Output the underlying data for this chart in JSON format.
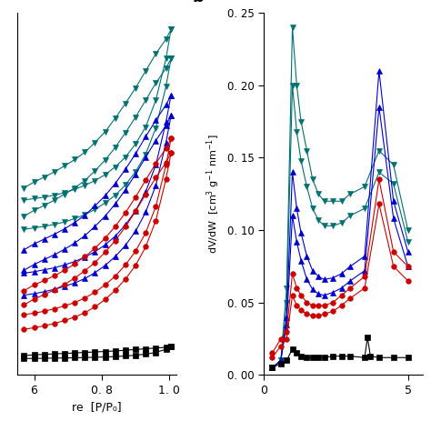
{
  "panel_a": {
    "xlim": [
      0.55,
      1.02
    ],
    "xticks": [
      0.6,
      0.8,
      1.0
    ],
    "xticklabels": [
      "6",
      "0. 8",
      "1. 0"
    ],
    "xlabel": "re  [P/P₀]",
    "series": [
      {
        "color": "#007070",
        "marker": "v",
        "x_ads": [
          0.57,
          0.6,
          0.63,
          0.66,
          0.69,
          0.72,
          0.75,
          0.78,
          0.81,
          0.84,
          0.87,
          0.9,
          0.93,
          0.96,
          0.99,
          1.005
        ],
        "y_ads": [
          330,
          333,
          336,
          340,
          345,
          352,
          360,
          370,
          382,
          398,
          418,
          445,
          480,
          535,
          620,
          680
        ],
        "x_des": [
          1.005,
          0.99,
          0.96,
          0.93,
          0.9,
          0.87,
          0.84,
          0.81,
          0.78,
          0.75,
          0.72,
          0.69,
          0.66,
          0.63,
          0.6,
          0.57
        ],
        "y_des": [
          680,
          660,
          630,
          595,
          560,
          528,
          498,
          470,
          448,
          428,
          413,
          400,
          388,
          377,
          367,
          355
        ]
      },
      {
        "color": "#007070",
        "marker": "v",
        "x_ads": [
          0.57,
          0.6,
          0.63,
          0.66,
          0.69,
          0.72,
          0.75,
          0.78,
          0.81,
          0.84,
          0.87,
          0.9,
          0.93,
          0.96,
          0.99,
          1.005
        ],
        "y_ads": [
          270,
          273,
          276,
          280,
          285,
          292,
          300,
          311,
          324,
          340,
          361,
          388,
          424,
          478,
          563,
          620
        ],
        "x_des": [
          1.005,
          0.99,
          0.96,
          0.93,
          0.9,
          0.87,
          0.84,
          0.81,
          0.78,
          0.75,
          0.72,
          0.69,
          0.66,
          0.63,
          0.6,
          0.57
        ],
        "y_des": [
          620,
          600,
          570,
          535,
          500,
          468,
          438,
          412,
          390,
          370,
          355,
          342,
          330,
          319,
          309,
          297
        ]
      },
      {
        "color": "#0000cc",
        "marker": "^",
        "x_ads": [
          0.57,
          0.6,
          0.63,
          0.66,
          0.69,
          0.72,
          0.75,
          0.78,
          0.81,
          0.84,
          0.87,
          0.9,
          0.93,
          0.96,
          0.99,
          1.005
        ],
        "y_ads": [
          180,
          183,
          187,
          191,
          197,
          204,
          213,
          224,
          238,
          256,
          279,
          308,
          347,
          402,
          490,
          545
        ],
        "x_des": [
          1.005,
          0.99,
          0.96,
          0.93,
          0.9,
          0.87,
          0.84,
          0.81,
          0.78,
          0.75,
          0.72,
          0.69,
          0.66,
          0.63,
          0.6,
          0.57
        ],
        "y_des": [
          545,
          525,
          494,
          460,
          425,
          393,
          364,
          339,
          318,
          299,
          284,
          271,
          260,
          250,
          240,
          228
        ]
      },
      {
        "color": "#0000cc",
        "marker": "^",
        "x_ads": [
          0.57,
          0.6,
          0.63,
          0.66,
          0.69,
          0.72,
          0.75,
          0.78,
          0.81,
          0.84,
          0.87,
          0.9,
          0.93,
          0.96,
          0.99,
          1.005
        ],
        "y_ads": [
          135,
          138,
          142,
          147,
          153,
          160,
          169,
          181,
          196,
          214,
          237,
          266,
          305,
          360,
          448,
          503
        ],
        "x_des": [
          1.005,
          0.99,
          0.96,
          0.93,
          0.9,
          0.87,
          0.84,
          0.81,
          0.78,
          0.75,
          0.72,
          0.69,
          0.66,
          0.63,
          0.6,
          0.57
        ],
        "y_des": [
          503,
          483,
          452,
          418,
          383,
          351,
          322,
          297,
          276,
          257,
          242,
          229,
          218,
          208,
          198,
          186
        ]
      },
      {
        "color": "#cc0000",
        "marker": "o",
        "x_ads": [
          0.57,
          0.6,
          0.63,
          0.66,
          0.69,
          0.72,
          0.75,
          0.78,
          0.81,
          0.84,
          0.87,
          0.9,
          0.93,
          0.96,
          0.99,
          1.005
        ],
        "y_ads": [
          95,
          98,
          102,
          107,
          113,
          120,
          129,
          141,
          156,
          174,
          197,
          225,
          263,
          317,
          402,
          456
        ],
        "x_des": [
          1.005,
          0.99,
          0.96,
          0.93,
          0.9,
          0.87,
          0.84,
          0.81,
          0.78,
          0.75,
          0.72,
          0.69,
          0.66,
          0.63,
          0.6,
          0.57
        ],
        "y_des": [
          456,
          436,
          405,
          371,
          336,
          304,
          276,
          252,
          231,
          214,
          199,
          186,
          175,
          165,
          156,
          144
        ]
      },
      {
        "color": "#cc0000",
        "marker": "o",
        "x_ads": [
          0.57,
          0.6,
          0.63,
          0.66,
          0.69,
          0.72,
          0.75,
          0.78,
          0.81,
          0.84,
          0.87,
          0.9,
          0.93,
          0.96,
          0.99,
          1.005
        ],
        "y_ads": [
          65,
          68,
          72,
          77,
          83,
          90,
          99,
          111,
          126,
          145,
          168,
          196,
          234,
          288,
          373,
          427
        ],
        "x_des": [
          1.005,
          0.99,
          0.96,
          0.93,
          0.9,
          0.87,
          0.84,
          0.81,
          0.78,
          0.75,
          0.72,
          0.69,
          0.66,
          0.63,
          0.6,
          0.57
        ],
        "y_des": [
          427,
          407,
          376,
          342,
          307,
          275,
          247,
          223,
          202,
          185,
          170,
          157,
          146,
          136,
          127,
          115
        ]
      },
      {
        "color": "#000000",
        "marker": "s",
        "x_ads": [
          0.57,
          0.6,
          0.63,
          0.66,
          0.69,
          0.72,
          0.75,
          0.78,
          0.81,
          0.84,
          0.87,
          0.9,
          0.93,
          0.96,
          0.99,
          1.005
        ],
        "y_ads": [
          5,
          5.2,
          5.5,
          5.8,
          6.1,
          6.5,
          7.0,
          7.5,
          8.2,
          9.0,
          10.2,
          11.8,
          14.0,
          17.5,
          24,
          29
        ],
        "x_des": [
          1.005,
          0.99,
          0.96,
          0.93,
          0.9,
          0.87,
          0.84,
          0.81,
          0.78,
          0.75,
          0.72,
          0.69,
          0.66,
          0.63,
          0.6,
          0.57
        ],
        "y_des": [
          29,
          28,
          26.5,
          25,
          23.5,
          22,
          20.5,
          19.5,
          18.5,
          17.5,
          16.5,
          15.5,
          14.5,
          13.5,
          12.5,
          11
        ]
      }
    ]
  },
  "panel_b": {
    "xlim": [
      0,
      5.5
    ],
    "ylim": [
      0,
      0.25
    ],
    "xticks": [
      0,
      5
    ],
    "xticklabels": [
      "0",
      "5"
    ],
    "yticks": [
      0.0,
      0.05,
      0.1,
      0.15,
      0.2,
      0.25
    ],
    "yticklabels": [
      "0. 00",
      "0. 05",
      "0. 10",
      "0. 15",
      "0. 20",
      "0. 25"
    ],
    "ylabel_line1": "dV/dW",
    "ylabel_line2": "[cm³ g⁻¹ nm⁻¹]",
    "panel_label": "b",
    "series": [
      {
        "color": "#007070",
        "marker": "v",
        "x": [
          0.3,
          0.6,
          0.8,
          1.0,
          1.15,
          1.3,
          1.5,
          1.7,
          1.9,
          2.1,
          2.4,
          2.7,
          3.0,
          3.5,
          4.0,
          4.5,
          5.0
        ],
        "y": [
          0.005,
          0.01,
          0.06,
          0.24,
          0.2,
          0.175,
          0.155,
          0.135,
          0.125,
          0.12,
          0.12,
          0.12,
          0.125,
          0.13,
          0.155,
          0.145,
          0.1
        ]
      },
      {
        "color": "#007070",
        "marker": "v",
        "x": [
          0.3,
          0.6,
          0.8,
          1.0,
          1.15,
          1.3,
          1.5,
          1.7,
          1.9,
          2.1,
          2.4,
          2.7,
          3.0,
          3.5,
          4.0,
          4.5,
          5.0
        ],
        "y": [
          0.005,
          0.01,
          0.05,
          0.2,
          0.168,
          0.148,
          0.13,
          0.115,
          0.107,
          0.103,
          0.103,
          0.105,
          0.11,
          0.115,
          0.14,
          0.132,
          0.092
        ]
      },
      {
        "color": "#0000cc",
        "marker": "^",
        "x": [
          0.3,
          0.6,
          0.8,
          1.0,
          1.15,
          1.3,
          1.5,
          1.7,
          1.9,
          2.1,
          2.4,
          2.7,
          3.0,
          3.5,
          4.0,
          4.5,
          5.0
        ],
        "y": [
          0.005,
          0.01,
          0.04,
          0.14,
          0.115,
          0.098,
          0.082,
          0.072,
          0.068,
          0.066,
          0.067,
          0.07,
          0.075,
          0.082,
          0.21,
          0.12,
          0.085
        ]
      },
      {
        "color": "#0000cc",
        "marker": "^",
        "x": [
          0.3,
          0.6,
          0.8,
          1.0,
          1.15,
          1.3,
          1.5,
          1.7,
          1.9,
          2.1,
          2.4,
          2.7,
          3.0,
          3.5,
          4.0,
          4.5,
          5.0
        ],
        "y": [
          0.005,
          0.01,
          0.035,
          0.11,
          0.092,
          0.079,
          0.066,
          0.059,
          0.056,
          0.055,
          0.057,
          0.06,
          0.065,
          0.072,
          0.185,
          0.108,
          0.075
        ]
      },
      {
        "color": "#cc0000",
        "marker": "o",
        "x": [
          0.3,
          0.6,
          0.8,
          1.0,
          1.15,
          1.3,
          1.5,
          1.7,
          1.9,
          2.1,
          2.4,
          2.7,
          3.0,
          3.5,
          4.0,
          4.5,
          5.0
        ],
        "y": [
          0.015,
          0.025,
          0.03,
          0.07,
          0.06,
          0.055,
          0.05,
          0.048,
          0.048,
          0.048,
          0.05,
          0.055,
          0.06,
          0.068,
          0.135,
          0.085,
          0.075
        ]
      },
      {
        "color": "#cc0000",
        "marker": "o",
        "x": [
          0.3,
          0.6,
          0.8,
          1.0,
          1.15,
          1.3,
          1.5,
          1.7,
          1.9,
          2.1,
          2.4,
          2.7,
          3.0,
          3.5,
          4.0,
          4.5,
          5.0
        ],
        "y": [
          0.012,
          0.02,
          0.025,
          0.055,
          0.048,
          0.045,
          0.042,
          0.041,
          0.041,
          0.042,
          0.044,
          0.048,
          0.053,
          0.06,
          0.118,
          0.075,
          0.065
        ]
      },
      {
        "color": "#000000",
        "marker": "s",
        "x": [
          0.3,
          0.6,
          0.8,
          1.0,
          1.15,
          1.3,
          1.5,
          1.7,
          1.9,
          2.1,
          2.4,
          2.7,
          3.0,
          3.5,
          3.6,
          3.7,
          4.0,
          4.5,
          5.0
        ],
        "y": [
          0.005,
          0.008,
          0.01,
          0.018,
          0.015,
          0.013,
          0.012,
          0.012,
          0.012,
          0.012,
          0.013,
          0.013,
          0.013,
          0.012,
          0.026,
          0.013,
          0.012,
          0.012,
          0.012
        ]
      }
    ]
  }
}
